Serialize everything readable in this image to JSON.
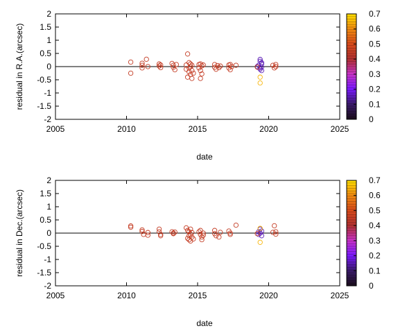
{
  "chart_data": [
    {
      "type": "scatter",
      "xlabel": "date",
      "ylabel": "residual in R.A.(arcsec)",
      "xlim": [
        2005,
        2025
      ],
      "ylim": [
        -2,
        2
      ],
      "xticks": [
        "2005",
        "2010",
        "2015",
        "2020",
        "2025"
      ],
      "yticks": [
        "2",
        "1.5",
        "1",
        "0.5",
        "0",
        "-0.5",
        "-1",
        "-1.5",
        "-2"
      ],
      "colorbar": {
        "range": [
          0,
          0.7
        ],
        "ticks": [
          "0.7",
          "0.6",
          "0.5",
          "0.4",
          "0.3",
          "0.2",
          "0.1",
          "0"
        ],
        "stops": [
          "#1a0d1a",
          "#3a1a6a",
          "#7a1aff",
          "#c832c8",
          "#b03030",
          "#d84a1a",
          "#f08a10",
          "#ffe000"
        ]
      },
      "points": [
        [
          2010.3,
          0.17,
          0.45
        ],
        [
          2010.3,
          -0.25,
          0.45
        ],
        [
          2011.1,
          0.13,
          0.45
        ],
        [
          2011.1,
          0.05,
          0.45
        ],
        [
          2011.1,
          -0.05,
          0.45
        ],
        [
          2011.4,
          0.28,
          0.45
        ],
        [
          2011.5,
          0.0,
          0.45
        ],
        [
          2012.3,
          0.1,
          0.45
        ],
        [
          2012.3,
          0.02,
          0.45
        ],
        [
          2012.4,
          -0.04,
          0.45
        ],
        [
          2012.4,
          0.06,
          0.45
        ],
        [
          2013.2,
          0.12,
          0.45
        ],
        [
          2013.3,
          0.05,
          0.45
        ],
        [
          2013.3,
          -0.03,
          0.45
        ],
        [
          2013.4,
          -0.12,
          0.45
        ],
        [
          2013.5,
          0.08,
          0.45
        ],
        [
          2014.2,
          0.06,
          0.45
        ],
        [
          2014.2,
          -0.1,
          0.45
        ],
        [
          2014.3,
          0.48,
          0.45
        ],
        [
          2014.3,
          -0.4,
          0.45
        ],
        [
          2014.4,
          0.15,
          0.45
        ],
        [
          2014.4,
          -0.05,
          0.45
        ],
        [
          2014.4,
          -0.2,
          0.45
        ],
        [
          2014.5,
          0.1,
          0.45
        ],
        [
          2014.5,
          -0.3,
          0.45
        ],
        [
          2014.5,
          0.0,
          0.45
        ],
        [
          2014.6,
          -0.15,
          0.45
        ],
        [
          2014.6,
          0.05,
          0.45
        ],
        [
          2014.6,
          -0.45,
          0.45
        ],
        [
          2014.7,
          -0.25,
          0.45
        ],
        [
          2015.1,
          0.08,
          0.45
        ],
        [
          2015.1,
          -0.05,
          0.45
        ],
        [
          2015.2,
          0.1,
          0.45
        ],
        [
          2015.2,
          -0.15,
          0.45
        ],
        [
          2015.3,
          0.03,
          0.45
        ],
        [
          2015.3,
          -0.28,
          0.45
        ],
        [
          2015.2,
          -0.45,
          0.45
        ],
        [
          2015.4,
          0.06,
          0.45
        ],
        [
          2016.2,
          0.08,
          0.45
        ],
        [
          2016.2,
          -0.03,
          0.45
        ],
        [
          2016.3,
          -0.1,
          0.45
        ],
        [
          2016.4,
          0.04,
          0.45
        ],
        [
          2016.5,
          -0.04,
          0.45
        ],
        [
          2016.6,
          0.02,
          0.45
        ],
        [
          2017.2,
          0.06,
          0.45
        ],
        [
          2017.2,
          -0.05,
          0.45
        ],
        [
          2017.3,
          -0.12,
          0.45
        ],
        [
          2017.3,
          0.08,
          0.45
        ],
        [
          2017.4,
          0.0,
          0.45
        ],
        [
          2017.7,
          0.05,
          0.45
        ],
        [
          2019.2,
          0.0,
          0.15
        ],
        [
          2019.3,
          0.05,
          0.15
        ],
        [
          2019.4,
          0.2,
          0.15
        ],
        [
          2019.4,
          0.27,
          0.15
        ],
        [
          2019.4,
          -0.05,
          0.15
        ],
        [
          2019.5,
          0.1,
          0.15
        ],
        [
          2019.4,
          -0.1,
          0.15
        ],
        [
          2019.5,
          -0.02,
          0.15
        ],
        [
          2019.5,
          -0.15,
          0.15
        ],
        [
          2019.5,
          0.15,
          0.15
        ],
        [
          2019.4,
          -0.4,
          0.65
        ],
        [
          2019.4,
          -0.62,
          0.65
        ],
        [
          2019.2,
          -0.02,
          0.45
        ],
        [
          2020.3,
          0.05,
          0.45
        ],
        [
          2020.4,
          -0.05,
          0.45
        ],
        [
          2020.5,
          0.08,
          0.45
        ],
        [
          2020.5,
          0.0,
          0.45
        ]
      ]
    },
    {
      "type": "scatter",
      "xlabel": "date",
      "ylabel": "residual in Dec.(arcsec)",
      "xlim": [
        2005,
        2025
      ],
      "ylim": [
        -2,
        2
      ],
      "xticks": [
        "2005",
        "2010",
        "2015",
        "2020",
        "2025"
      ],
      "yticks": [
        "2",
        "1.5",
        "1",
        "0.5",
        "0",
        "-0.5",
        "-1",
        "-1.5",
        "-2"
      ],
      "colorbar": {
        "range": [
          0,
          0.7
        ],
        "ticks": [
          "0.7",
          "0.6",
          "0.5",
          "0.4",
          "0.3",
          "0.2",
          "0.1",
          "0"
        ],
        "stops": [
          "#1a0d1a",
          "#3a1a6a",
          "#7a1aff",
          "#c832c8",
          "#b03030",
          "#d84a1a",
          "#f08a10",
          "#ffe000"
        ]
      },
      "points": [
        [
          2010.3,
          0.27,
          0.45
        ],
        [
          2010.3,
          0.22,
          0.45
        ],
        [
          2011.1,
          0.12,
          0.45
        ],
        [
          2011.1,
          0.06,
          0.45
        ],
        [
          2011.2,
          -0.05,
          0.45
        ],
        [
          2011.5,
          0.02,
          0.45
        ],
        [
          2011.5,
          -0.08,
          0.45
        ],
        [
          2012.3,
          0.15,
          0.45
        ],
        [
          2012.3,
          0.05,
          0.45
        ],
        [
          2012.4,
          -0.05,
          0.45
        ],
        [
          2012.4,
          -0.1,
          0.45
        ],
        [
          2013.2,
          0.05,
          0.45
        ],
        [
          2013.3,
          -0.02,
          0.45
        ],
        [
          2013.3,
          0.0,
          0.45
        ],
        [
          2013.4,
          0.04,
          0.45
        ],
        [
          2014.2,
          0.2,
          0.45
        ],
        [
          2014.3,
          0.1,
          0.45
        ],
        [
          2014.3,
          -0.2,
          0.45
        ],
        [
          2014.4,
          0.05,
          0.45
        ],
        [
          2014.4,
          -0.1,
          0.45
        ],
        [
          2014.4,
          -0.25,
          0.45
        ],
        [
          2014.5,
          0.15,
          0.45
        ],
        [
          2014.5,
          -0.05,
          0.45
        ],
        [
          2014.5,
          -0.3,
          0.45
        ],
        [
          2014.6,
          0.02,
          0.45
        ],
        [
          2014.6,
          -0.15,
          0.45
        ],
        [
          2014.7,
          -0.22,
          0.45
        ],
        [
          2015.1,
          0.05,
          0.45
        ],
        [
          2015.2,
          -0.05,
          0.45
        ],
        [
          2015.2,
          0.1,
          0.45
        ],
        [
          2015.3,
          -0.15,
          0.45
        ],
        [
          2015.3,
          -0.25,
          0.45
        ],
        [
          2015.4,
          0.0,
          0.45
        ],
        [
          2015.4,
          -0.08,
          0.45
        ],
        [
          2016.2,
          0.1,
          0.45
        ],
        [
          2016.2,
          -0.02,
          0.45
        ],
        [
          2016.3,
          -0.1,
          0.45
        ],
        [
          2016.5,
          -0.15,
          0.45
        ],
        [
          2016.6,
          0.03,
          0.45
        ],
        [
          2017.2,
          0.08,
          0.45
        ],
        [
          2017.3,
          0.0,
          0.45
        ],
        [
          2017.3,
          -0.05,
          0.45
        ],
        [
          2017.7,
          0.3,
          0.45
        ],
        [
          2019.3,
          0.05,
          0.15
        ],
        [
          2019.3,
          -0.05,
          0.15
        ],
        [
          2019.4,
          0.15,
          0.15
        ],
        [
          2019.4,
          0.0,
          0.15
        ],
        [
          2019.5,
          0.08,
          0.15
        ],
        [
          2019.5,
          -0.1,
          0.15
        ],
        [
          2019.4,
          0.18,
          0.65
        ],
        [
          2019.4,
          -0.35,
          0.65
        ],
        [
          2019.2,
          -0.02,
          0.45
        ],
        [
          2020.3,
          0.03,
          0.45
        ],
        [
          2020.4,
          0.28,
          0.45
        ],
        [
          2020.5,
          0.05,
          0.45
        ],
        [
          2020.5,
          -0.04,
          0.45
        ]
      ]
    }
  ]
}
